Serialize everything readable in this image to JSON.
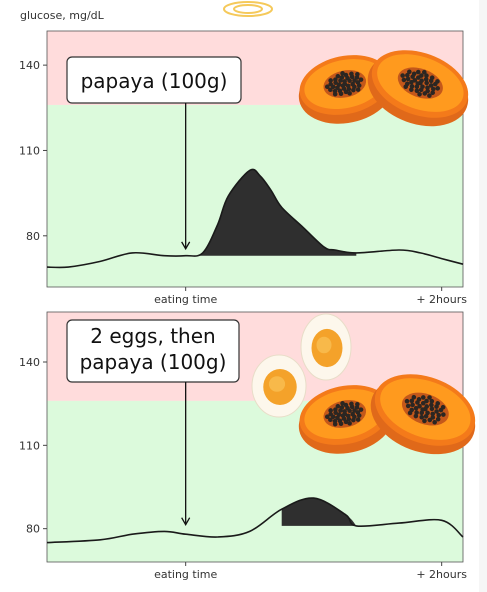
{
  "ylabel": "glucose, mg/dL",
  "colors": {
    "high_zone": "#ffdcdc",
    "normal_zone": "#dcfadc",
    "line": "#1a1a1a",
    "spike_fill": "#2f2f2f",
    "papaya_skin": "#f47a1a",
    "papaya_flesh": "#ff9a1e",
    "seed": "#2b2622",
    "egg_white": "#fdf7ec",
    "egg_yolk": "#f4a22a"
  },
  "chart_data": [
    {
      "type": "line",
      "title": "",
      "xlabel": "",
      "ylabel": "glucose, mg/dL",
      "ylim": [
        62,
        152
      ],
      "yticks": [
        80,
        110,
        140
      ],
      "zones": {
        "normal_max": 126
      },
      "x_ticks": [
        {
          "x": 0,
          "label": "eating time"
        },
        {
          "x": 120,
          "label": "+ 2hours"
        }
      ],
      "xlim": [
        -65,
        130
      ],
      "annotation": {
        "text": "papaya (100g)",
        "x": 0,
        "y": 74
      },
      "series": [
        {
          "x": [
            -65,
            -55,
            -40,
            -25,
            -10,
            0,
            8,
            15,
            20,
            30,
            35,
            40,
            45,
            55,
            65,
            70,
            80,
            100,
            110,
            120,
            130
          ],
          "values": [
            69,
            69,
            71,
            74,
            73,
            73,
            74,
            84,
            94,
            103,
            101,
            96,
            90,
            83,
            76,
            75,
            74,
            75,
            74,
            72,
            70
          ]
        }
      ],
      "spike_range": [
        0,
        80
      ]
    },
    {
      "type": "line",
      "title": "",
      "xlabel": "",
      "ylabel": "glucose, mg/dL",
      "ylim": [
        68,
        158
      ],
      "yticks": [
        80,
        110,
        140
      ],
      "zones": {
        "normal_max": 126
      },
      "x_ticks": [
        {
          "x": 0,
          "label": "eating time"
        },
        {
          "x": 120,
          "label": "+ 2hours"
        }
      ],
      "xlim": [
        -65,
        130
      ],
      "annotation": {
        "text": "2 eggs, then\npapaya (100g)",
        "x": 0,
        "y": 80
      },
      "series": [
        {
          "x": [
            -65,
            -40,
            -25,
            -10,
            0,
            15,
            30,
            45,
            60,
            75,
            80,
            100,
            120,
            130
          ],
          "values": [
            75,
            76,
            78,
            79,
            78,
            77,
            79,
            87,
            91,
            85,
            81,
            82,
            83,
            77
          ]
        }
      ],
      "spike_range": [
        45,
        80
      ]
    }
  ]
}
